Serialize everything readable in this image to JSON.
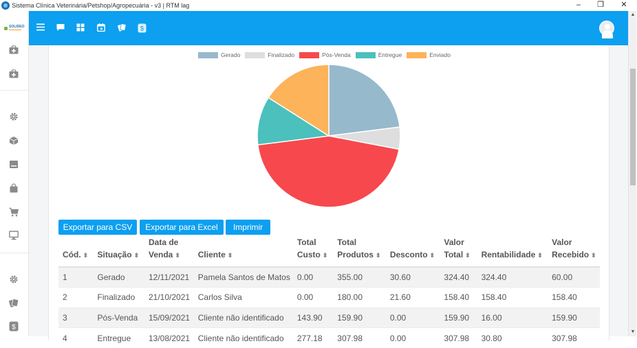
{
  "window": {
    "title": "Sistema Clínica Veterinária/Petshop/Agropecuária - v3 | RTM lag",
    "controls": {
      "minimize": "–",
      "maximize": "❐",
      "close": "✕"
    }
  },
  "sidebar": {
    "logo_text": "SOLIDEO",
    "icons": [
      "medkit-icon",
      "medkit-plus-icon",
      "gear-icon",
      "cube-icon",
      "archive-icon",
      "bag-icon",
      "cart-icon",
      "monitor-icon",
      "gear-icon",
      "tickets-icon",
      "dollar-icon"
    ]
  },
  "topbar": {
    "icons": [
      "menu-icon",
      "chat-icon",
      "grid-icon",
      "calendar-icon",
      "tickets-icon",
      "dollar-icon"
    ]
  },
  "colors": {
    "header_blue": "#0d9ff0",
    "gerado": "#97b9cc",
    "finalizado": "#dedede",
    "pos_venda": "#f7484d",
    "entregue": "#4bc0bd",
    "enviado": "#fcb35a"
  },
  "chart_data": {
    "type": "pie",
    "legend_position": "top",
    "categories": [
      "Gerado",
      "Finalizado",
      "Pós-Venda",
      "Entregue",
      "Enviado"
    ],
    "values": [
      23,
      5,
      45,
      11,
      16
    ],
    "colors": [
      "#97b9cc",
      "#dedede",
      "#f7484d",
      "#4bc0bd",
      "#fcb35a"
    ]
  },
  "buttons": {
    "csv": "Exportar para CSV",
    "excel": "Exportar para Excel",
    "print": "Imprimir"
  },
  "table": {
    "headers": [
      [
        "",
        "Cód."
      ],
      [
        "",
        "Situação"
      ],
      [
        "Data de",
        "Venda"
      ],
      [
        "",
        "Cliente"
      ],
      [
        "Total",
        "Custo"
      ],
      [
        "Total",
        "Produtos"
      ],
      [
        "",
        "Desconto"
      ],
      [
        "Valor",
        "Total"
      ],
      [
        "",
        "Rentabilidade"
      ],
      [
        "Valor",
        "Recebido"
      ]
    ],
    "rows": [
      [
        "1",
        "Gerado",
        "12/11/2021",
        "Pamela Santos de Matos",
        "0.00",
        "355.00",
        "30.60",
        "324.40",
        "324.40",
        "60.00"
      ],
      [
        "2",
        "Finalizado",
        "21/10/2021",
        "Carlos Silva",
        "0.00",
        "180.00",
        "21.60",
        "158.40",
        "158.40",
        "158.40"
      ],
      [
        "3",
        "Pós-Venda",
        "15/09/2021",
        "Cliente não identificado",
        "143.90",
        "159.90",
        "0.00",
        "159.90",
        "16.00",
        "159.90"
      ],
      [
        "4",
        "Entregue",
        "13/08/2021",
        "Cliente não identificado",
        "277.18",
        "307.98",
        "0.00",
        "307.98",
        "30.80",
        "307.98"
      ]
    ]
  }
}
